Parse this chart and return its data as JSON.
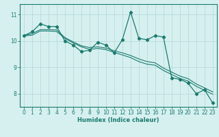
{
  "title": "",
  "xlabel": "Humidex (Indice chaleur)",
  "bg_color": "#d6f0ef",
  "grid_color": "#b8dada",
  "line_color": "#1a7a6e",
  "x_values": [
    0,
    1,
    2,
    3,
    4,
    5,
    6,
    7,
    8,
    9,
    10,
    11,
    12,
    13,
    14,
    15,
    16,
    17,
    18,
    19,
    20,
    21,
    22,
    23
  ],
  "y_main": [
    10.2,
    10.35,
    10.65,
    10.55,
    10.55,
    10.0,
    9.85,
    9.6,
    9.65,
    9.95,
    9.85,
    9.55,
    10.05,
    11.1,
    10.1,
    10.05,
    10.2,
    10.15,
    8.6,
    8.55,
    8.4,
    8.0,
    8.15,
    7.65
  ],
  "y_line1": [
    10.2,
    10.22,
    10.38,
    10.38,
    10.36,
    10.1,
    9.93,
    9.78,
    9.68,
    9.72,
    9.67,
    9.57,
    9.47,
    9.37,
    9.22,
    9.12,
    9.08,
    8.88,
    8.73,
    8.58,
    8.48,
    8.28,
    8.13,
    7.98
  ],
  "y_line2": [
    10.2,
    10.28,
    10.43,
    10.43,
    10.42,
    10.13,
    9.97,
    9.82,
    9.75,
    9.78,
    9.73,
    9.63,
    9.55,
    9.45,
    9.32,
    9.22,
    9.17,
    8.97,
    8.82,
    8.67,
    8.57,
    8.37,
    8.22,
    8.07
  ],
  "ylim": [
    7.5,
    11.4
  ],
  "yticks": [
    8,
    9,
    10,
    11
  ],
  "xticks": [
    0,
    1,
    2,
    3,
    4,
    5,
    6,
    7,
    8,
    9,
    10,
    11,
    12,
    13,
    14,
    15,
    16,
    17,
    18,
    19,
    20,
    21,
    22,
    23
  ]
}
